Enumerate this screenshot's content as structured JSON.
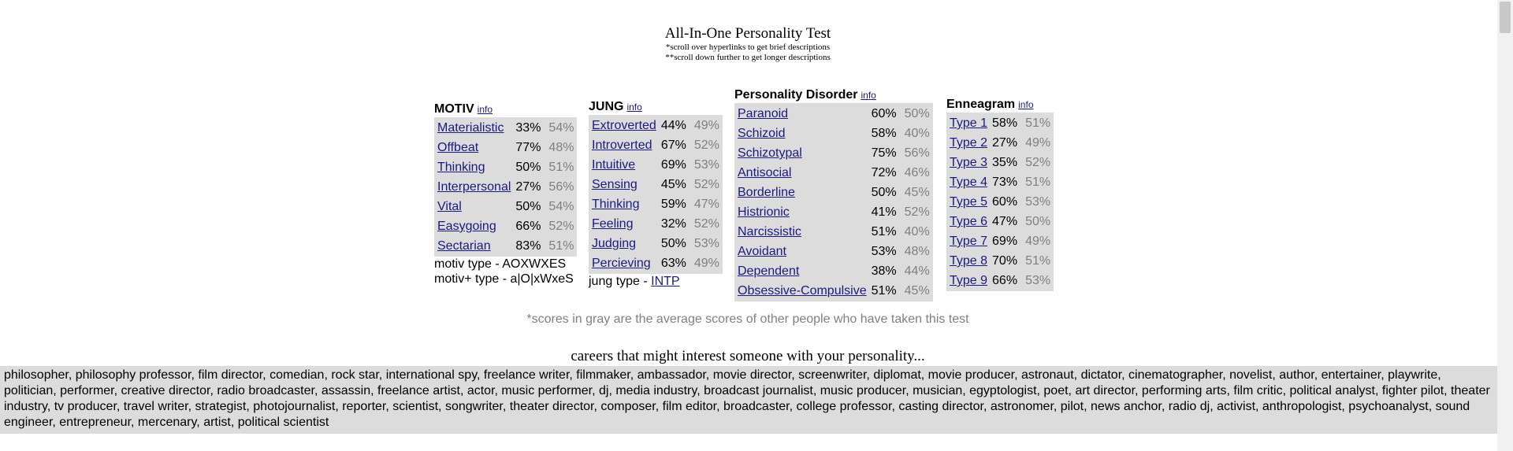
{
  "header": {
    "title": "All-In-One Personality Test",
    "note1": "*scroll over hyperlinks to get brief descriptions",
    "note2": "**scroll down further to get longer descriptions"
  },
  "motiv": {
    "heading": "MOTIV",
    "info": "info",
    "rows": [
      {
        "label": "Materialistic",
        "score": "33%",
        "avg": "54%"
      },
      {
        "label": "Offbeat",
        "score": "77%",
        "avg": "48%"
      },
      {
        "label": "Thinking",
        "score": "50%",
        "avg": "51%"
      },
      {
        "label": "Interpersonal",
        "score": "27%",
        "avg": "56%"
      },
      {
        "label": "Vital",
        "score": "50%",
        "avg": "54%"
      },
      {
        "label": "Easygoing",
        "score": "66%",
        "avg": "52%"
      },
      {
        "label": "Sectarian",
        "score": "83%",
        "avg": "51%"
      }
    ],
    "type_line": "motiv type - AOXWXES",
    "type_plus_line": "motiv+ type - a|O|xWxeS"
  },
  "jung": {
    "heading": "JUNG",
    "info": "info",
    "rows": [
      {
        "label": "Extroverted",
        "score": "44%",
        "avg": "49%"
      },
      {
        "label": "Introverted",
        "score": "67%",
        "avg": "52%"
      },
      {
        "label": "Intuitive",
        "score": "69%",
        "avg": "53%"
      },
      {
        "label": "Sensing",
        "score": "45%",
        "avg": "52%"
      },
      {
        "label": "Thinking",
        "score": "59%",
        "avg": "47%"
      },
      {
        "label": "Feeling",
        "score": "32%",
        "avg": "52%"
      },
      {
        "label": "Judging",
        "score": "50%",
        "avg": "53%"
      },
      {
        "label": "Percieving",
        "score": "63%",
        "avg": "49%"
      }
    ],
    "type_prefix": "jung type - ",
    "type_value": "INTP"
  },
  "pd": {
    "heading": "Personality Disorder",
    "info": "info",
    "rows": [
      {
        "label": "Paranoid",
        "score": "60%",
        "avg": "50%"
      },
      {
        "label": "Schizoid",
        "score": "58%",
        "avg": "40%"
      },
      {
        "label": "Schizotypal",
        "score": "75%",
        "avg": "56%"
      },
      {
        "label": "Antisocial",
        "score": "72%",
        "avg": "46%"
      },
      {
        "label": "Borderline",
        "score": "50%",
        "avg": "45%"
      },
      {
        "label": "Histrionic",
        "score": "41%",
        "avg": "52%"
      },
      {
        "label": "Narcissistic",
        "score": "51%",
        "avg": "40%"
      },
      {
        "label": "Avoidant",
        "score": "53%",
        "avg": "48%"
      },
      {
        "label": "Dependent",
        "score": "38%",
        "avg": "44%"
      },
      {
        "label": "Obsessive-Compulsive",
        "score": "51%",
        "avg": "45%"
      }
    ]
  },
  "enneagram": {
    "heading": "Enneagram",
    "info": "info",
    "rows": [
      {
        "label": "Type 1",
        "score": "58%",
        "avg": "51%"
      },
      {
        "label": "Type 2",
        "score": "27%",
        "avg": "49%"
      },
      {
        "label": "Type 3",
        "score": "35%",
        "avg": "52%"
      },
      {
        "label": "Type 4",
        "score": "73%",
        "avg": "51%"
      },
      {
        "label": "Type 5",
        "score": "60%",
        "avg": "53%"
      },
      {
        "label": "Type 6",
        "score": "47%",
        "avg": "50%"
      },
      {
        "label": "Type 7",
        "score": "69%",
        "avg": "49%"
      },
      {
        "label": "Type 8",
        "score": "70%",
        "avg": "51%"
      },
      {
        "label": "Type 9",
        "score": "66%",
        "avg": "53%"
      }
    ]
  },
  "footnote": "*scores in gray are the average scores of other people who have taken this test",
  "careers": {
    "title": "careers that might interest someone with your personality...",
    "list": "philosopher, philosophy professor, film director, comedian, rock star, international spy, freelance writer, filmmaker, ambassador, movie director, screenwriter, diplomat, movie producer, astronaut, dictator, cinematographer, novelist, author, entertainer, playwrite, politician, performer, creative director, radio broadcaster, assassin, freelance artist, actor, music performer, dj, media industry, broadcast journalist, music producer, musician, egyptologist, poet, art director, performing arts, film critic, political analyst, fighter pilot, theater industry, tv producer, travel writer, strategist, photojournalist, reporter, scientist, songwriter, theater director, composer, film editor, broadcaster, college professor, casting director, astronomer, pilot, news anchor, radio dj, activist, anthropologist, psychoanalyst, sound engineer, entrepreneur, mercenary, artist, political scientist"
  },
  "colors": {
    "panel_bg": "#dcdcdc",
    "link": "#1a1a80",
    "gray_text": "#808080"
  }
}
